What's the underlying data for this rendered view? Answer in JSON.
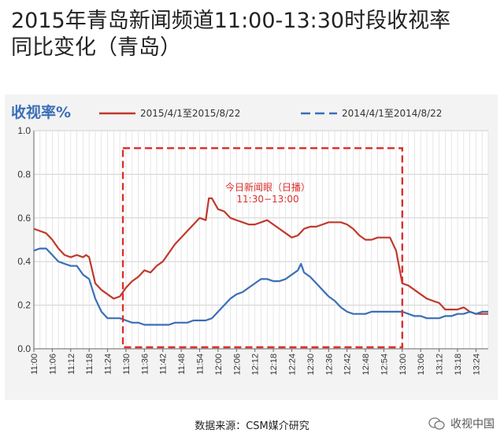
{
  "header": {
    "title_line1": "2015年青岛新闻频道11:00-13:30时段收视率",
    "title_line2": "同比变化（青岛）"
  },
  "footer": {
    "source": "数据来源：CSM媒介研究",
    "watermark": "收视中国"
  },
  "chart_data": {
    "type": "line",
    "ylabel": "收视率%",
    "ylim": [
      0,
      1.0
    ],
    "yticks": [
      "0.0",
      "0.2",
      "0.4",
      "0.6",
      "0.8",
      "1.0"
    ],
    "xlim": [
      "11:00",
      "13:28"
    ],
    "xticks": [
      "11:00",
      "11:06",
      "11:12",
      "11:18",
      "11:24",
      "11:30",
      "11:36",
      "11:42",
      "11:48",
      "11:54",
      "12:00",
      "12:06",
      "12:12",
      "12:18",
      "12:24",
      "12:30",
      "12:36",
      "12:42",
      "12:48",
      "12:54",
      "13:00",
      "13:06",
      "13:12",
      "13:18",
      "13:24"
    ],
    "grid": true,
    "legend_position": "top",
    "annotation": {
      "text_line1": "今日新闻眼（日播）",
      "text_line2": "11:30−13:00",
      "x_range": [
        "11:29",
        "13:00"
      ],
      "y_top": 0.92,
      "color": "#d9302c"
    },
    "series": [
      {
        "name": "2015/4/1至2015/8/22",
        "color": "#c0392b",
        "dash": "solid",
        "points": [
          [
            "11:00",
            0.55
          ],
          [
            "11:02",
            0.54
          ],
          [
            "11:04",
            0.53
          ],
          [
            "11:06",
            0.5
          ],
          [
            "11:08",
            0.46
          ],
          [
            "11:10",
            0.43
          ],
          [
            "11:12",
            0.42
          ],
          [
            "11:14",
            0.43
          ],
          [
            "11:16",
            0.42
          ],
          [
            "11:17",
            0.43
          ],
          [
            "11:18",
            0.42
          ],
          [
            "11:20",
            0.3
          ],
          [
            "11:22",
            0.27
          ],
          [
            "11:24",
            0.25
          ],
          [
            "11:26",
            0.23
          ],
          [
            "11:28",
            0.24
          ],
          [
            "11:30",
            0.28
          ],
          [
            "11:32",
            0.31
          ],
          [
            "11:34",
            0.33
          ],
          [
            "11:36",
            0.36
          ],
          [
            "11:38",
            0.35
          ],
          [
            "11:40",
            0.38
          ],
          [
            "11:42",
            0.4
          ],
          [
            "11:44",
            0.44
          ],
          [
            "11:46",
            0.48
          ],
          [
            "11:48",
            0.51
          ],
          [
            "11:50",
            0.54
          ],
          [
            "11:52",
            0.57
          ],
          [
            "11:54",
            0.6
          ],
          [
            "11:56",
            0.59
          ],
          [
            "11:57",
            0.69
          ],
          [
            "11:58",
            0.69
          ],
          [
            "12:00",
            0.64
          ],
          [
            "12:02",
            0.63
          ],
          [
            "12:04",
            0.6
          ],
          [
            "12:06",
            0.59
          ],
          [
            "12:08",
            0.58
          ],
          [
            "12:10",
            0.57
          ],
          [
            "12:12",
            0.57
          ],
          [
            "12:14",
            0.58
          ],
          [
            "12:16",
            0.59
          ],
          [
            "12:18",
            0.57
          ],
          [
            "12:20",
            0.55
          ],
          [
            "12:22",
            0.53
          ],
          [
            "12:24",
            0.51
          ],
          [
            "12:26",
            0.52
          ],
          [
            "12:28",
            0.55
          ],
          [
            "12:30",
            0.56
          ],
          [
            "12:32",
            0.56
          ],
          [
            "12:34",
            0.57
          ],
          [
            "12:36",
            0.58
          ],
          [
            "12:38",
            0.58
          ],
          [
            "12:40",
            0.58
          ],
          [
            "12:42",
            0.57
          ],
          [
            "12:44",
            0.55
          ],
          [
            "12:46",
            0.52
          ],
          [
            "12:48",
            0.5
          ],
          [
            "12:50",
            0.5
          ],
          [
            "12:52",
            0.51
          ],
          [
            "12:54",
            0.51
          ],
          [
            "12:56",
            0.51
          ],
          [
            "12:58",
            0.45
          ],
          [
            "13:00",
            0.3
          ],
          [
            "13:02",
            0.29
          ],
          [
            "13:04",
            0.27
          ],
          [
            "13:06",
            0.25
          ],
          [
            "13:08",
            0.23
          ],
          [
            "13:10",
            0.22
          ],
          [
            "13:12",
            0.21
          ],
          [
            "13:14",
            0.18
          ],
          [
            "13:16",
            0.18
          ],
          [
            "13:18",
            0.18
          ],
          [
            "13:20",
            0.19
          ],
          [
            "13:22",
            0.17
          ],
          [
            "13:24",
            0.16
          ],
          [
            "13:26",
            0.16
          ],
          [
            "13:28",
            0.16
          ]
        ]
      },
      {
        "name": "2014/4/1至2014/8/22",
        "color": "#3a6fb7",
        "dash": "dashed",
        "points": [
          [
            "11:00",
            0.45
          ],
          [
            "11:02",
            0.46
          ],
          [
            "11:04",
            0.46
          ],
          [
            "11:06",
            0.43
          ],
          [
            "11:08",
            0.4
          ],
          [
            "11:10",
            0.39
          ],
          [
            "11:12",
            0.38
          ],
          [
            "11:14",
            0.38
          ],
          [
            "11:16",
            0.34
          ],
          [
            "11:18",
            0.32
          ],
          [
            "11:20",
            0.23
          ],
          [
            "11:22",
            0.17
          ],
          [
            "11:24",
            0.14
          ],
          [
            "11:26",
            0.14
          ],
          [
            "11:28",
            0.14
          ],
          [
            "11:30",
            0.13
          ],
          [
            "11:32",
            0.12
          ],
          [
            "11:34",
            0.12
          ],
          [
            "11:36",
            0.11
          ],
          [
            "11:38",
            0.11
          ],
          [
            "11:40",
            0.11
          ],
          [
            "11:42",
            0.11
          ],
          [
            "11:44",
            0.11
          ],
          [
            "11:46",
            0.12
          ],
          [
            "11:48",
            0.12
          ],
          [
            "11:50",
            0.12
          ],
          [
            "11:52",
            0.13
          ],
          [
            "11:54",
            0.13
          ],
          [
            "11:56",
            0.13
          ],
          [
            "11:58",
            0.14
          ],
          [
            "12:00",
            0.17
          ],
          [
            "12:02",
            0.2
          ],
          [
            "12:04",
            0.23
          ],
          [
            "12:06",
            0.25
          ],
          [
            "12:08",
            0.26
          ],
          [
            "12:10",
            0.28
          ],
          [
            "12:12",
            0.3
          ],
          [
            "12:14",
            0.32
          ],
          [
            "12:16",
            0.32
          ],
          [
            "12:18",
            0.31
          ],
          [
            "12:20",
            0.31
          ],
          [
            "12:22",
            0.32
          ],
          [
            "12:24",
            0.34
          ],
          [
            "12:26",
            0.36
          ],
          [
            "12:27",
            0.39
          ],
          [
            "12:28",
            0.35
          ],
          [
            "12:30",
            0.33
          ],
          [
            "12:32",
            0.3
          ],
          [
            "12:34",
            0.27
          ],
          [
            "12:36",
            0.24
          ],
          [
            "12:38",
            0.22
          ],
          [
            "12:40",
            0.19
          ],
          [
            "12:42",
            0.17
          ],
          [
            "12:44",
            0.16
          ],
          [
            "12:46",
            0.16
          ],
          [
            "12:48",
            0.16
          ],
          [
            "12:50",
            0.17
          ],
          [
            "12:52",
            0.17
          ],
          [
            "12:54",
            0.17
          ],
          [
            "12:56",
            0.17
          ],
          [
            "12:58",
            0.17
          ],
          [
            "13:00",
            0.17
          ],
          [
            "13:02",
            0.16
          ],
          [
            "13:04",
            0.15
          ],
          [
            "13:06",
            0.15
          ],
          [
            "13:08",
            0.14
          ],
          [
            "13:10",
            0.14
          ],
          [
            "13:12",
            0.14
          ],
          [
            "13:14",
            0.15
          ],
          [
            "13:16",
            0.15
          ],
          [
            "13:18",
            0.16
          ],
          [
            "13:20",
            0.16
          ],
          [
            "13:22",
            0.17
          ],
          [
            "13:24",
            0.16
          ],
          [
            "13:26",
            0.17
          ],
          [
            "13:28",
            0.17
          ]
        ]
      }
    ]
  }
}
